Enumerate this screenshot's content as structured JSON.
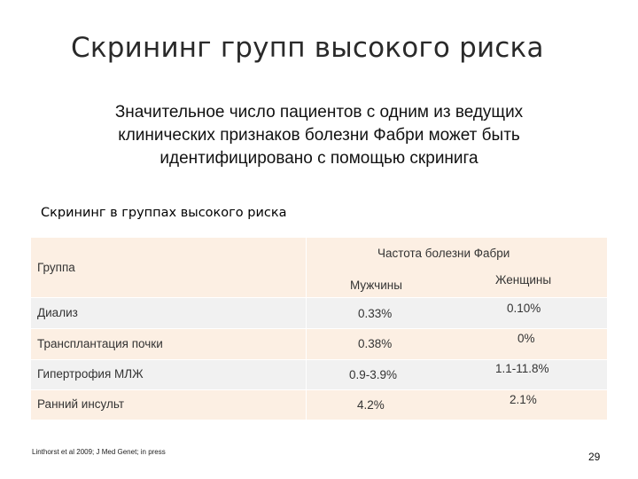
{
  "slide": {
    "title": "Скрининг групп высокого риска",
    "subtitle_lines": [
      "Значительное число пациентов с одним из ведущих",
      "клинических признаков болезни Фабри может быть",
      "идентифицировано с помощью скринига"
    ],
    "table_heading": "Скрининг в группах высокого риска",
    "footnote": "Linthorst et al 2009; J Med Genet; in press",
    "page_number": "29"
  },
  "table": {
    "group_header": "Группа",
    "frequency_header": "Частота болезни Фабри",
    "men_header": "Мужчины",
    "women_header": "Женщины",
    "rows": [
      {
        "group": "Диализ",
        "men": "0.33%",
        "women": "0.10%"
      },
      {
        "group": "Трансплантация почки",
        "men": "0.38%",
        "women": "0%"
      },
      {
        "group": "Гипертрофия МЛЖ",
        "men": "0.9-3.9%",
        "women": "1.1-11.8%"
      },
      {
        "group": "Ранний инсульт",
        "men": "4.2%",
        "women": "2.1%"
      }
    ]
  }
}
